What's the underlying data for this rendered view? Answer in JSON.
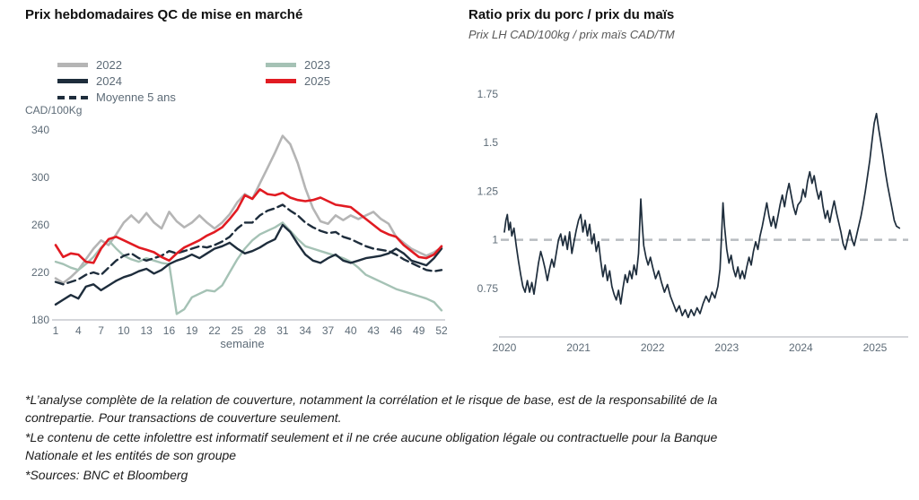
{
  "footnotes": [
    "*L’analyse complète de la relation de couverture, notamment la corrélation et le risque de base, est de la responsabilité de la contrepartie. Pour transactions de couverture seulement.",
    "*Le contenu de cette infolettre est informatif seulement et il ne crée aucune obligation légale ou contractuelle pour la Banque Nationale et les entités de son groupe",
    "*Sources: BNC et Bloomberg"
  ],
  "colors": {
    "gray_2022": "#b5b5b5",
    "sage_2023": "#a5c2b5",
    "navy": "#1e2d3c",
    "red_2025": "#e11b22",
    "reference_dash": "#b8bcc0",
    "axis": "#a9aeb4",
    "tick_text": "#5d6b77"
  },
  "chart_data": [
    {
      "type": "line",
      "title": "Prix hebdomadaires QC de mise en marché",
      "xlabel": "semaine",
      "ylabel": "CAD/100Kg",
      "xlim": [
        1,
        52
      ],
      "ylim": [
        180,
        340
      ],
      "xticks": [
        1,
        4,
        7,
        10,
        13,
        16,
        19,
        22,
        25,
        28,
        31,
        34,
        37,
        40,
        43,
        46,
        49,
        52
      ],
      "yticks": [
        180,
        220,
        260,
        300,
        340
      ],
      "grid": false,
      "legend_position": "top-left, two columns",
      "series": [
        {
          "name": "2022",
          "color": "#b5b5b5",
          "width": 2.6,
          "values": [
            215,
            211,
            216,
            222,
            231,
            240,
            247,
            243,
            252,
            262,
            268,
            262,
            270,
            262,
            257,
            271,
            263,
            258,
            262,
            268,
            262,
            257,
            262,
            269,
            279,
            286,
            282,
            295,
            308,
            321,
            335,
            328,
            312,
            291,
            274,
            263,
            261,
            268,
            264,
            268,
            265,
            268,
            271,
            265,
            261,
            250,
            245,
            240,
            237,
            234,
            237,
            241
          ]
        },
        {
          "name": "2023",
          "color": "#a5c2b5",
          "width": 2.4,
          "values": [
            229,
            227,
            224,
            222,
            227,
            233,
            241,
            247,
            240,
            234,
            231,
            229,
            232,
            230,
            228,
            227,
            185,
            189,
            199,
            202,
            205,
            204,
            209,
            220,
            231,
            240,
            247,
            252,
            255,
            258,
            262,
            255,
            248,
            242,
            240,
            238,
            236,
            234,
            232,
            229,
            224,
            218,
            215,
            212,
            209,
            206,
            204,
            202,
            200,
            198,
            195,
            188
          ]
        },
        {
          "name": "Moyenne 5 ans",
          "color": "#1e2d3c",
          "width": 2.4,
          "dash": "9 5",
          "values": [
            212,
            210,
            212,
            214,
            218,
            220,
            218,
            224,
            230,
            234,
            236,
            232,
            230,
            232,
            234,
            238,
            236,
            238,
            240,
            242,
            241,
            243,
            246,
            250,
            257,
            262,
            262,
            268,
            272,
            274,
            277,
            272,
            268,
            262,
            258,
            255,
            253,
            254,
            250,
            248,
            245,
            242,
            240,
            239,
            238,
            235,
            231,
            228,
            225,
            222,
            221,
            222
          ]
        },
        {
          "name": "2024",
          "color": "#1e2d3c",
          "width": 2.4,
          "values": [
            193,
            197,
            201,
            198,
            208,
            210,
            205,
            209,
            213,
            216,
            218,
            221,
            223,
            219,
            222,
            227,
            230,
            232,
            235,
            232,
            236,
            240,
            242,
            245,
            240,
            236,
            238,
            241,
            245,
            248,
            260,
            254,
            244,
            235,
            230,
            228,
            232,
            235,
            230,
            228,
            230,
            232,
            233,
            234,
            236,
            240,
            236,
            230,
            228,
            226,
            232,
            240
          ]
        },
        {
          "name": "2025",
          "color": "#e11b22",
          "width": 2.6,
          "values": [
            243,
            233,
            236,
            235,
            229,
            228,
            240,
            248,
            250,
            247,
            244,
            241,
            239,
            237,
            233,
            230,
            236,
            241,
            244,
            247,
            251,
            254,
            258,
            265,
            273,
            285,
            282,
            290,
            286,
            285,
            287,
            283,
            281,
            280,
            281,
            283,
            280,
            277,
            276,
            275,
            270,
            265,
            260,
            255,
            252,
            250,
            243,
            238,
            233,
            232,
            235,
            242
          ]
        }
      ]
    },
    {
      "type": "line",
      "title": "Ratio prix du porc / prix du maïs",
      "subtitle": "Prix LH CAD/100kg / prix maïs CAD/TM",
      "xlim": [
        2020,
        2025.4
      ],
      "ylim": [
        0.5,
        1.75
      ],
      "xticks": [
        2020,
        2021,
        2022,
        2023,
        2024,
        2025
      ],
      "yticks": [
        0.75,
        1,
        1.25,
        1.5,
        1.75
      ],
      "ref_line": 1,
      "ref_color": "#b8bcc0",
      "grid": false,
      "series": [
        {
          "name": "ratio porc/maïs",
          "color": "#1e2d3c",
          "width": 1.7,
          "points": [
            [
              2020.0,
              1.04
            ],
            [
              2020.02,
              1.1
            ],
            [
              2020.04,
              1.13
            ],
            [
              2020.06,
              1.05
            ],
            [
              2020.08,
              1.09
            ],
            [
              2020.1,
              1.02
            ],
            [
              2020.13,
              1.06
            ],
            [
              2020.16,
              0.97
            ],
            [
              2020.19,
              0.89
            ],
            [
              2020.22,
              0.82
            ],
            [
              2020.25,
              0.76
            ],
            [
              2020.28,
              0.73
            ],
            [
              2020.31,
              0.79
            ],
            [
              2020.34,
              0.73
            ],
            [
              2020.37,
              0.78
            ],
            [
              2020.4,
              0.72
            ],
            [
              2020.43,
              0.8
            ],
            [
              2020.46,
              0.88
            ],
            [
              2020.49,
              0.94
            ],
            [
              2020.52,
              0.9
            ],
            [
              2020.55,
              0.85
            ],
            [
              2020.58,
              0.79
            ],
            [
              2020.61,
              0.85
            ],
            [
              2020.64,
              0.9
            ],
            [
              2020.67,
              0.86
            ],
            [
              2020.7,
              0.93
            ],
            [
              2020.73,
              1.0
            ],
            [
              2020.76,
              1.03
            ],
            [
              2020.79,
              0.97
            ],
            [
              2020.82,
              1.02
            ],
            [
              2020.85,
              0.95
            ],
            [
              2020.88,
              1.04
            ],
            [
              2020.91,
              0.93
            ],
            [
              2020.94,
              0.99
            ],
            [
              2020.97,
              1.05
            ],
            [
              2021.0,
              1.1
            ],
            [
              2021.03,
              1.13
            ],
            [
              2021.06,
              1.04
            ],
            [
              2021.09,
              1.1
            ],
            [
              2021.12,
              1.02
            ],
            [
              2021.15,
              1.08
            ],
            [
              2021.18,
              0.98
            ],
            [
              2021.21,
              1.03
            ],
            [
              2021.24,
              0.94
            ],
            [
              2021.27,
              0.99
            ],
            [
              2021.3,
              0.89
            ],
            [
              2021.33,
              0.81
            ],
            [
              2021.36,
              0.87
            ],
            [
              2021.39,
              0.79
            ],
            [
              2021.42,
              0.84
            ],
            [
              2021.45,
              0.76
            ],
            [
              2021.48,
              0.72
            ],
            [
              2021.51,
              0.69
            ],
            [
              2021.54,
              0.74
            ],
            [
              2021.57,
              0.67
            ],
            [
              2021.6,
              0.75
            ],
            [
              2021.63,
              0.82
            ],
            [
              2021.66,
              0.78
            ],
            [
              2021.69,
              0.84
            ],
            [
              2021.72,
              0.8
            ],
            [
              2021.75,
              0.87
            ],
            [
              2021.78,
              0.82
            ],
            [
              2021.81,
              0.93
            ],
            [
              2021.84,
              1.21
            ],
            [
              2021.86,
              1.08
            ],
            [
              2021.88,
              0.97
            ],
            [
              2021.91,
              0.91
            ],
            [
              2021.94,
              0.87
            ],
            [
              2021.97,
              0.91
            ],
            [
              2022.0,
              0.86
            ],
            [
              2022.04,
              0.8
            ],
            [
              2022.08,
              0.84
            ],
            [
              2022.12,
              0.78
            ],
            [
              2022.16,
              0.73
            ],
            [
              2022.2,
              0.77
            ],
            [
              2022.24,
              0.71
            ],
            [
              2022.28,
              0.67
            ],
            [
              2022.32,
              0.63
            ],
            [
              2022.36,
              0.66
            ],
            [
              2022.4,
              0.61
            ],
            [
              2022.44,
              0.64
            ],
            [
              2022.48,
              0.6
            ],
            [
              2022.52,
              0.64
            ],
            [
              2022.56,
              0.61
            ],
            [
              2022.6,
              0.65
            ],
            [
              2022.64,
              0.62
            ],
            [
              2022.68,
              0.67
            ],
            [
              2022.72,
              0.71
            ],
            [
              2022.76,
              0.68
            ],
            [
              2022.8,
              0.73
            ],
            [
              2022.84,
              0.7
            ],
            [
              2022.88,
              0.76
            ],
            [
              2022.91,
              0.85
            ],
            [
              2022.93,
              1.02
            ],
            [
              2022.95,
              1.19
            ],
            [
              2022.97,
              1.07
            ],
            [
              2023.0,
              0.95
            ],
            [
              2023.03,
              0.88
            ],
            [
              2023.06,
              0.92
            ],
            [
              2023.09,
              0.85
            ],
            [
              2023.12,
              0.81
            ],
            [
              2023.15,
              0.86
            ],
            [
              2023.18,
              0.8
            ],
            [
              2023.21,
              0.84
            ],
            [
              2023.24,
              0.8
            ],
            [
              2023.27,
              0.86
            ],
            [
              2023.3,
              0.91
            ],
            [
              2023.33,
              0.87
            ],
            [
              2023.36,
              0.94
            ],
            [
              2023.39,
              0.99
            ],
            [
              2023.42,
              0.95
            ],
            [
              2023.45,
              1.02
            ],
            [
              2023.48,
              1.07
            ],
            [
              2023.51,
              1.13
            ],
            [
              2023.54,
              1.19
            ],
            [
              2023.57,
              1.12
            ],
            [
              2023.6,
              1.07
            ],
            [
              2023.63,
              1.12
            ],
            [
              2023.66,
              1.06
            ],
            [
              2023.69,
              1.12
            ],
            [
              2023.72,
              1.18
            ],
            [
              2023.75,
              1.23
            ],
            [
              2023.78,
              1.17
            ],
            [
              2023.81,
              1.24
            ],
            [
              2023.84,
              1.29
            ],
            [
              2023.87,
              1.23
            ],
            [
              2023.9,
              1.17
            ],
            [
              2023.93,
              1.13
            ],
            [
              2023.96,
              1.18
            ],
            [
              2024.0,
              1.2
            ],
            [
              2024.03,
              1.26
            ],
            [
              2024.06,
              1.22
            ],
            [
              2024.09,
              1.3
            ],
            [
              2024.12,
              1.35
            ],
            [
              2024.15,
              1.29
            ],
            [
              2024.18,
              1.33
            ],
            [
              2024.21,
              1.26
            ],
            [
              2024.24,
              1.21
            ],
            [
              2024.27,
              1.25
            ],
            [
              2024.3,
              1.17
            ],
            [
              2024.33,
              1.11
            ],
            [
              2024.36,
              1.15
            ],
            [
              2024.39,
              1.09
            ],
            [
              2024.42,
              1.15
            ],
            [
              2024.45,
              1.2
            ],
            [
              2024.48,
              1.14
            ],
            [
              2024.51,
              1.09
            ],
            [
              2024.54,
              1.04
            ],
            [
              2024.57,
              0.98
            ],
            [
              2024.6,
              0.95
            ],
            [
              2024.63,
              1.0
            ],
            [
              2024.66,
              1.05
            ],
            [
              2024.69,
              1.0
            ],
            [
              2024.72,
              0.97
            ],
            [
              2024.75,
              1.02
            ],
            [
              2024.78,
              1.07
            ],
            [
              2024.81,
              1.12
            ],
            [
              2024.84,
              1.18
            ],
            [
              2024.87,
              1.25
            ],
            [
              2024.9,
              1.33
            ],
            [
              2024.93,
              1.41
            ],
            [
              2024.96,
              1.51
            ],
            [
              2024.99,
              1.6
            ],
            [
              2025.02,
              1.65
            ],
            [
              2025.05,
              1.57
            ],
            [
              2025.08,
              1.5
            ],
            [
              2025.11,
              1.43
            ],
            [
              2025.14,
              1.35
            ],
            [
              2025.17,
              1.28
            ],
            [
              2025.2,
              1.22
            ],
            [
              2025.23,
              1.16
            ],
            [
              2025.26,
              1.1
            ],
            [
              2025.29,
              1.07
            ],
            [
              2025.33,
              1.06
            ]
          ]
        }
      ]
    }
  ]
}
